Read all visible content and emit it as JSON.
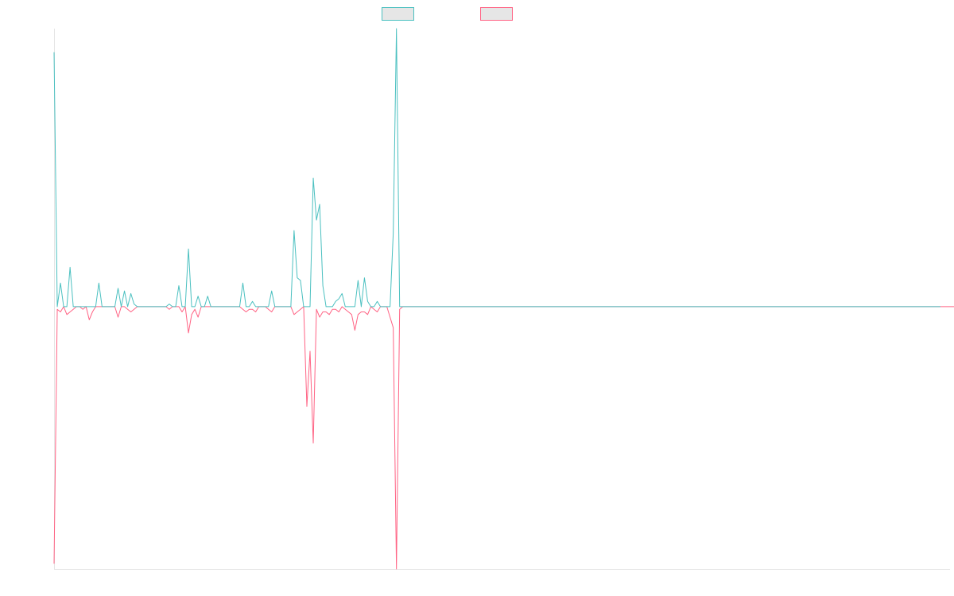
{
  "chart_data": {
    "type": "line",
    "xlim": [
      0,
      280
    ],
    "ylim": [
      -1,
      1.06
    ],
    "grid": false,
    "legend_position": "top-center",
    "series": [
      {
        "color": "#4bc0c0",
        "values": [
          0.97,
          0.0,
          0.09,
          0.0,
          0.0,
          0.15,
          0.0,
          0.0,
          0.0,
          0.0,
          0.0,
          0.0,
          0.0,
          0.0,
          0.09,
          0.0,
          0.0,
          0.0,
          0.0,
          0.0,
          0.07,
          0.0,
          0.06,
          0.0,
          0.05,
          0.01,
          0.0,
          0.0,
          0.0,
          0.0,
          0.0,
          0.0,
          0.0,
          0.0,
          0.0,
          0.0,
          0.01,
          0.0,
          0.0,
          0.08,
          0.0,
          0.0,
          0.22,
          0.0,
          0.0,
          0.04,
          0.0,
          0.0,
          0.04,
          0.0,
          0.0,
          0.0,
          0.0,
          0.0,
          0.0,
          0.0,
          0.0,
          0.0,
          0.0,
          0.09,
          0.0,
          0.0,
          0.02,
          0.0,
          0.0,
          0.0,
          0.0,
          0.0,
          0.06,
          0.0,
          0.0,
          0.0,
          0.0,
          0.0,
          0.0,
          0.29,
          0.11,
          0.1,
          0.0,
          0.0,
          0.0,
          0.49,
          0.33,
          0.39,
          0.08,
          0.0,
          0.0,
          0.0,
          0.02,
          0.03,
          0.05,
          0.0,
          0.0,
          0.0,
          0.0,
          0.1,
          0.0,
          0.11,
          0.02,
          0.0,
          0.0,
          0.02,
          0.0,
          0.0,
          0.0,
          0.0,
          0.28,
          1.06,
          0.0,
          0.0,
          0.0,
          0.0,
          0.0,
          0.0,
          0.0,
          0.0,
          0.0,
          0.0,
          0.0,
          0.0,
          0.0,
          0.0,
          0.0,
          0.0,
          0.0,
          0.0,
          0.0,
          0.0,
          0.0,
          0.0,
          0.0,
          0.0,
          0.0,
          0.0,
          0.0,
          0.0,
          0.0,
          0.0,
          0.0,
          0.0,
          0.0,
          0.0,
          0.0,
          0.0,
          0.0,
          0.0,
          0.0,
          0.0,
          0.0,
          0.0,
          0.0,
          0.0,
          0.0,
          0.0,
          0.0,
          0.0,
          0.0,
          0.0,
          0.0,
          0.0,
          0.0,
          0.0,
          0.0,
          0.0,
          0.0,
          0.0,
          0.0,
          0.0,
          0.0,
          0.0,
          0.0,
          0.0,
          0.0,
          0.0,
          0.0,
          0.0,
          0.0,
          0.0,
          0.0,
          0.0,
          0.0,
          0.0,
          0.0,
          0.0,
          0.0,
          0.0,
          0.0,
          0.0,
          0.0,
          0.0,
          0.0,
          0.0,
          0.0,
          0.0,
          0.0,
          0.0,
          0.0,
          0.0,
          0.0,
          0.0,
          0.0,
          0.0,
          0.0,
          0.0,
          0.0,
          0.0,
          0.0,
          0.0,
          0.0,
          0.0,
          0.0,
          0.0,
          0.0,
          0.0,
          0.0,
          0.0,
          0.0,
          0.0,
          0.0,
          0.0,
          0.0,
          0.0,
          0.0,
          0.0,
          0.0,
          0.0,
          0.0,
          0.0,
          0.0,
          0.0,
          0.0,
          0.0,
          0.0,
          0.0,
          0.0,
          0.0,
          0.0,
          0.0,
          0.0,
          0.0,
          0.0,
          0.0,
          0.0,
          0.0,
          0.0,
          0.0,
          0.0,
          0.0,
          0.0,
          0.0,
          0.0,
          0.0,
          0.0,
          0.0,
          0.0,
          0.0,
          0.0,
          0.0,
          0.0,
          0.0,
          0.0,
          0.0,
          0.0,
          0.0,
          0.0,
          0.0,
          0.0,
          0.0,
          0.0,
          0.0,
          0.0,
          0.0,
          0.0,
          0.0,
          0.0,
          0.0,
          0.0,
          0.0
        ]
      },
      {
        "color": "#ff6384",
        "values": [
          -0.98,
          -0.01,
          -0.02,
          0.0,
          -0.03,
          -0.02,
          -0.01,
          0.0,
          0.0,
          -0.01,
          0.0,
          -0.05,
          -0.02,
          0.0,
          0.0,
          0.0,
          0.0,
          0.0,
          0.0,
          0.0,
          -0.04,
          0.0,
          0.0,
          -0.01,
          -0.02,
          -0.01,
          0.0,
          0.0,
          0.0,
          0.0,
          0.0,
          0.0,
          0.0,
          0.0,
          0.0,
          0.0,
          -0.01,
          0.0,
          0.0,
          0.0,
          -0.02,
          0.0,
          -0.1,
          -0.03,
          -0.01,
          -0.04,
          0.0,
          0.0,
          0.0,
          0.0,
          0.0,
          0.0,
          0.0,
          0.0,
          0.0,
          0.0,
          0.0,
          0.0,
          0.0,
          -0.01,
          -0.02,
          -0.01,
          -0.01,
          -0.02,
          0.0,
          0.0,
          0.0,
          -0.01,
          -0.02,
          0.0,
          0.0,
          0.0,
          0.0,
          0.0,
          0.0,
          -0.03,
          -0.02,
          -0.01,
          0.0,
          -0.38,
          -0.17,
          -0.52,
          -0.01,
          -0.04,
          -0.02,
          -0.02,
          -0.03,
          -0.01,
          -0.01,
          -0.02,
          0.0,
          -0.01,
          -0.02,
          -0.03,
          -0.09,
          -0.03,
          -0.02,
          -0.02,
          -0.03,
          0.0,
          -0.01,
          -0.02,
          0.0,
          0.0,
          0.0,
          -0.04,
          -0.08,
          -1.0,
          -0.01,
          0.0,
          0.0,
          0.0,
          0.0,
          0.0,
          0.0,
          0.0,
          0.0,
          0.0,
          0.0,
          0.0,
          0.0,
          0.0,
          0.0,
          0.0,
          0.0,
          0.0,
          0.0,
          0.0,
          0.0,
          0.0,
          0.0,
          0.0,
          0.0,
          0.0,
          0.0,
          0.0,
          0.0,
          0.0,
          0.0,
          0.0,
          0.0,
          0.0,
          0.0,
          0.0,
          0.0,
          0.0,
          0.0,
          0.0,
          0.0,
          0.0,
          0.0,
          0.0,
          0.0,
          0.0,
          0.0,
          0.0,
          0.0,
          0.0,
          0.0,
          0.0,
          0.0,
          0.0,
          0.0,
          0.0,
          0.0,
          0.0,
          0.0,
          0.0,
          0.0,
          0.0,
          0.0,
          0.0,
          0.0,
          0.0,
          0.0,
          0.0,
          0.0,
          0.0,
          0.0,
          0.0,
          0.0,
          0.0,
          0.0,
          0.0,
          0.0,
          0.0,
          0.0,
          0.0,
          0.0,
          0.0,
          0.0,
          0.0,
          0.0,
          0.0,
          0.0,
          0.0,
          0.0,
          0.0,
          0.0,
          0.0,
          0.0,
          0.0,
          0.0,
          0.0,
          0.0,
          0.0,
          0.0,
          0.0,
          0.0,
          0.0,
          0.0,
          0.0,
          0.0,
          0.0,
          0.0,
          0.0,
          0.0,
          0.0,
          0.0,
          0.0,
          0.0,
          0.0,
          0.0,
          0.0,
          0.0,
          0.0,
          0.0,
          0.0,
          0.0,
          0.0,
          0.0,
          0.0,
          0.0,
          0.0,
          0.0,
          0.0,
          0.0,
          0.0,
          0.0,
          0.0,
          0.0,
          0.0,
          0.0,
          0.0,
          0.0,
          0.0,
          0.0,
          0.0,
          0.0,
          0.0,
          0.0,
          0.0,
          0.0,
          0.0,
          0.0,
          0.0,
          0.0,
          0.0,
          0.0,
          0.0,
          0.0,
          0.0,
          0.0,
          0.0,
          0.0,
          0.0,
          0.0,
          0.0,
          0.0,
          0.0,
          0.0,
          0.0,
          0.0,
          0.0,
          0.0,
          0.0,
          0.0,
          0.0,
          0.0,
          0.0,
          0.0,
          0.0,
          0.0,
          0.0
        ]
      }
    ]
  }
}
